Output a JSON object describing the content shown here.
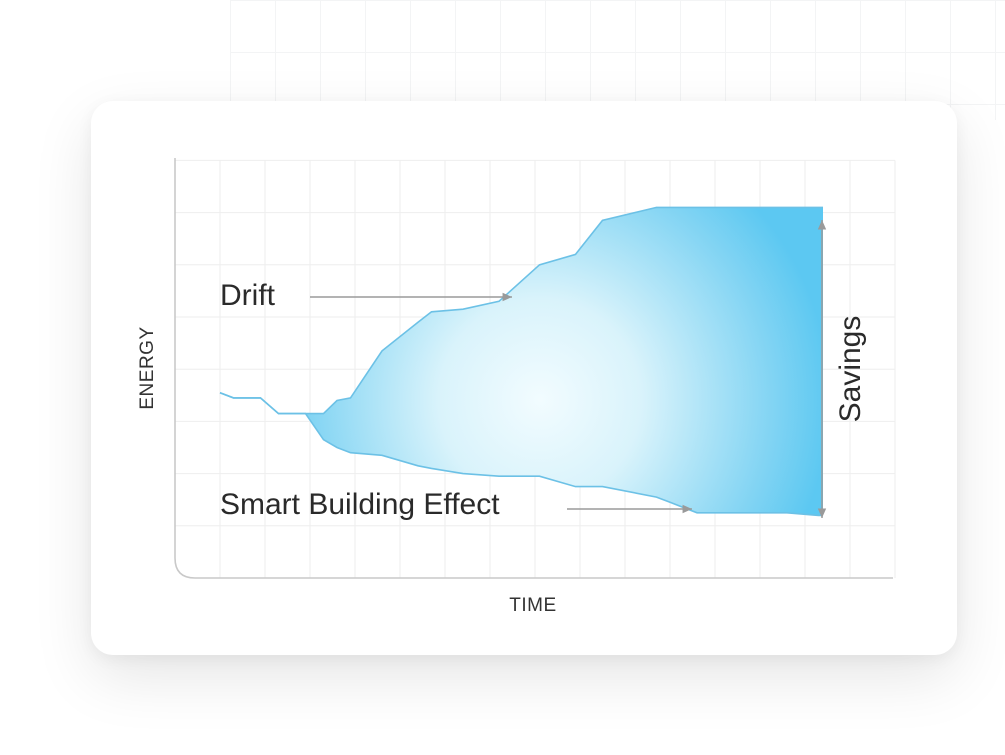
{
  "chart_data": {
    "type": "area",
    "xlabel": "TIME",
    "ylabel": "ENERGY",
    "xlim": [
      0,
      16
    ],
    "ylim": [
      0,
      8
    ],
    "grid": true,
    "x": [
      1.0,
      1.3,
      1.9,
      2.3,
      2.9,
      3.3,
      3.6,
      3.9,
      4.6,
      5.4,
      5.7,
      6.4,
      7.2,
      8.1,
      8.9,
      9.5,
      10.7,
      11.0,
      11.6,
      12.7,
      13.6,
      14.3,
      14.4
    ],
    "series": [
      {
        "values": [
          3.55,
          3.45,
          3.45,
          3.15,
          3.15,
          3.15,
          3.4,
          3.45,
          4.35,
          4.9,
          5.1,
          5.15,
          5.3,
          6.0,
          6.2,
          6.85,
          7.1,
          7.1,
          7.1,
          7.1,
          7.1,
          7.1,
          7.1
        ]
      },
      {
        "values": [
          3.55,
          3.45,
          3.45,
          3.15,
          3.15,
          2.65,
          2.5,
          2.4,
          2.35,
          2.15,
          2.1,
          2.0,
          1.95,
          1.95,
          1.75,
          1.75,
          1.55,
          1.45,
          1.25,
          1.25,
          1.25,
          1.2,
          1.2
        ]
      }
    ],
    "annotations": [
      {
        "text": "Drift"
      },
      {
        "text": "Smart Building Effect"
      },
      {
        "text": "Savings"
      }
    ]
  },
  "colors": {
    "fill_edge": "#5cc8f2",
    "fill_light": "#eafaff",
    "line": "#6cc1e6",
    "axis": "#c9c9c9",
    "grid": "#eeeeee",
    "arrow": "#9a9a9a"
  }
}
